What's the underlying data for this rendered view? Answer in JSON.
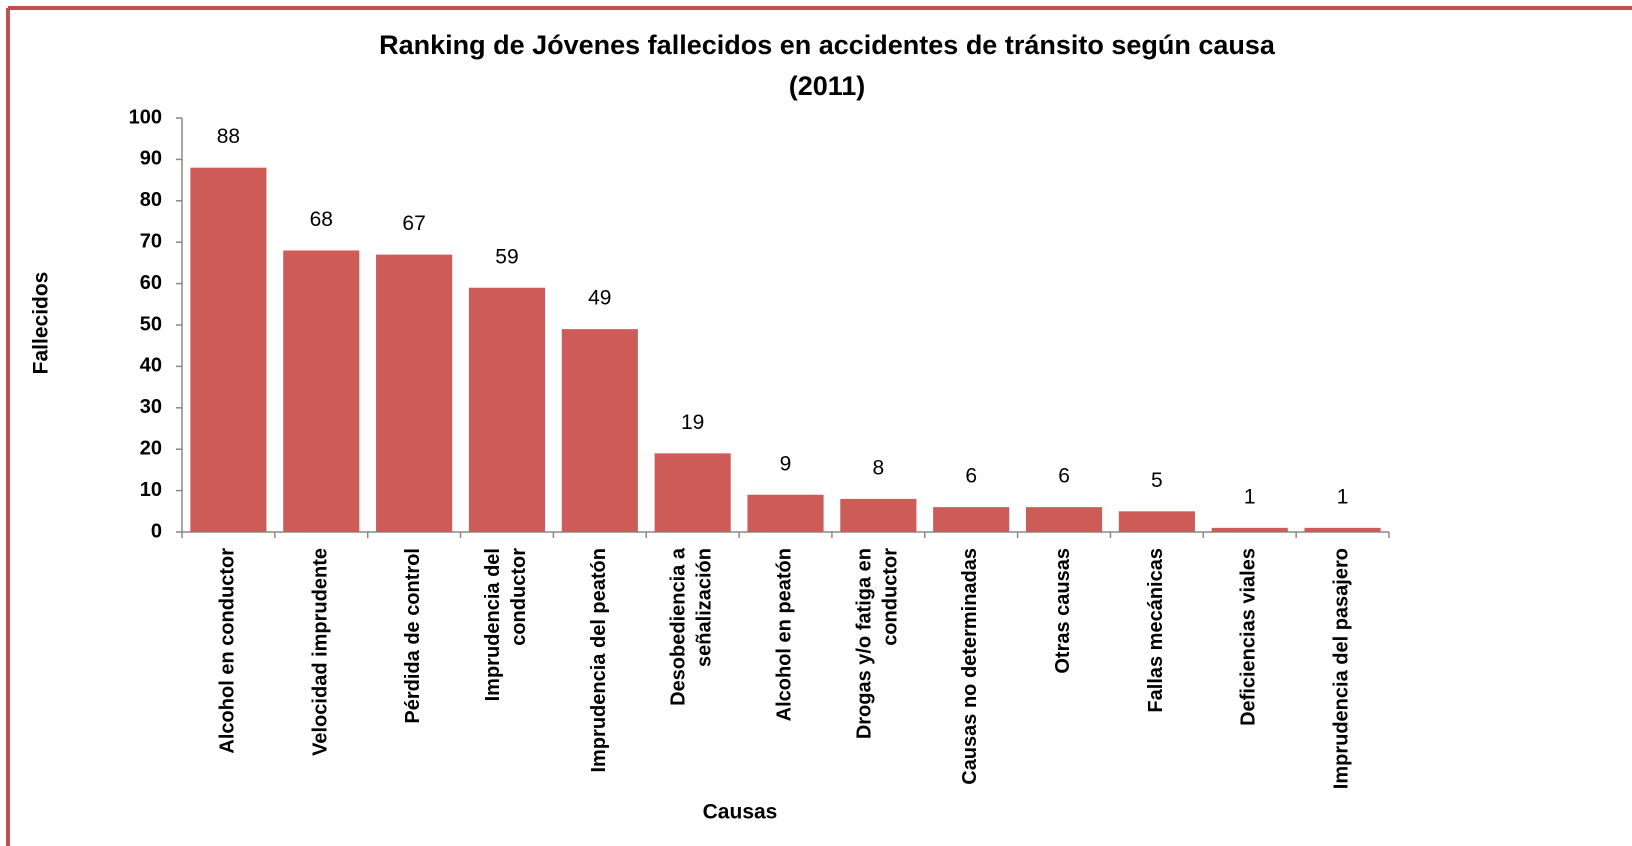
{
  "chart_data": {
    "type": "bar",
    "title": "Ranking de Jóvenes fallecidos en accidentes de tránsito según causa",
    "subtitle": "(2011)",
    "x_label": "Causas",
    "y_label": "Fallecidos",
    "categories": [
      "Alcohol en conductor",
      "Velocidad imprudente",
      "Pérdida de control",
      "Imprudencia del conductor",
      "Imprudencia del peatón",
      "Desobediencia a señalización",
      "Alcohol en peatón",
      "Drogas y/o fatiga en conductor",
      "Causas no determinadas",
      "Otras causas",
      "Fallas mecánicas",
      "Deficiencias viales",
      "Imprudencia del pasajero"
    ],
    "values": [
      88,
      68,
      67,
      59,
      49,
      19,
      9,
      8,
      6,
      6,
      5,
      1,
      1
    ],
    "color": "#cd5b57",
    "ylim": [
      0,
      100
    ],
    "yticks": [
      0,
      10,
      20,
      30,
      40,
      50,
      60,
      70,
      80,
      90,
      100
    ],
    "grid": false
  }
}
